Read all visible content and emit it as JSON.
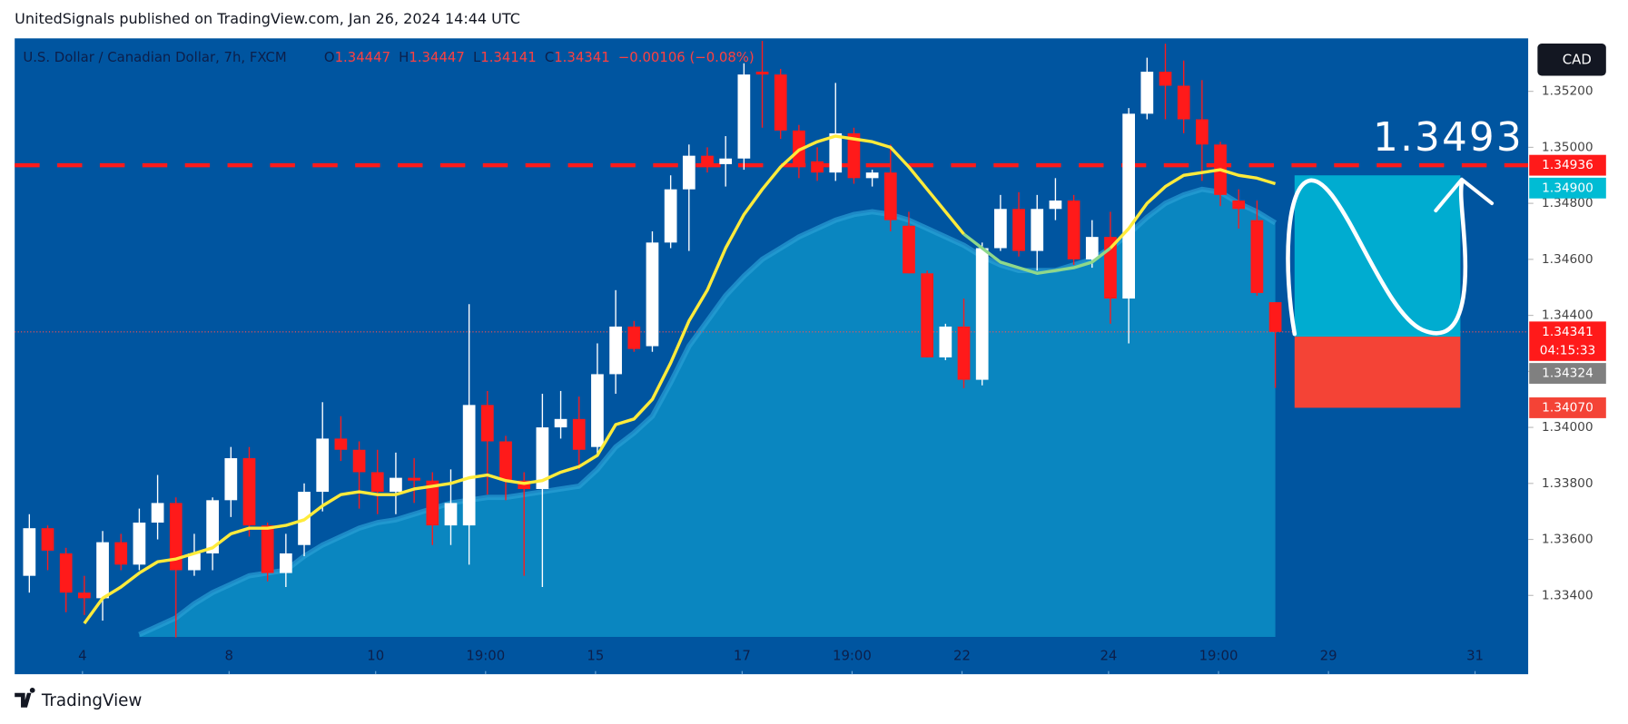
{
  "header": "UnitedSignals published on TradingView.com, Jan 26, 2024 14:44 UTC",
  "footer": "TradingView",
  "currency_button": "CAD",
  "chart_data": {
    "type": "candlestick",
    "symbol": "U.S. Dollar / Canadian Dollar, 7h, FXCM",
    "ohlc_legend": [
      {
        "key": "O",
        "value": 1.34447
      },
      {
        "key": "H",
        "value": 1.34447
      },
      {
        "key": "L",
        "value": 1.34141
      },
      {
        "key": "C",
        "value": 1.34341
      }
    ],
    "change": "−0.00106 (−0.08%)",
    "up_color": "#ffffff",
    "down_color": "#ff1a1a",
    "background": "#0055a0",
    "x": [
      0,
      1,
      2,
      3,
      4,
      5,
      6,
      7,
      8,
      9,
      10,
      11,
      12,
      13,
      14,
      15,
      16,
      17,
      18,
      19,
      20,
      21,
      22,
      23,
      24,
      25,
      26,
      27,
      28,
      29,
      30,
      31,
      32,
      33,
      34,
      35,
      36,
      37,
      38,
      39,
      40,
      41,
      42,
      43,
      44,
      45,
      46,
      47,
      48,
      49,
      50,
      51,
      52,
      53,
      54,
      55,
      56,
      57,
      58,
      59,
      60,
      61,
      62,
      63,
      64,
      65,
      66,
      67,
      68
    ],
    "open": [
      1.3347,
      1.3364,
      1.3355,
      1.3341,
      1.3339,
      1.3359,
      1.3351,
      1.3366,
      1.3373,
      1.3349,
      1.3355,
      1.3374,
      1.3389,
      1.3365,
      1.3348,
      1.3358,
      1.3377,
      1.3396,
      1.3392,
      1.3384,
      1.3377,
      1.3382,
      1.3381,
      1.3365,
      1.3365,
      1.3408,
      1.3395,
      1.3381,
      1.3378,
      1.34,
      1.3403,
      1.3393,
      1.3419,
      1.3436,
      1.3429,
      1.3466,
      1.3485,
      1.3497,
      1.3494,
      1.3496,
      1.3527,
      1.3526,
      1.3506,
      1.3495,
      1.3491,
      1.3505,
      1.3489,
      1.3491,
      1.3472,
      1.3455,
      1.3425,
      1.3436,
      1.3417,
      1.3464,
      1.3478,
      1.3463,
      1.3478,
      1.3481,
      1.346,
      1.3468,
      1.3446,
      1.3512,
      1.3527,
      1.3522,
      1.351,
      1.3501,
      1.3481,
      1.3474,
      1.34447
    ],
    "high": [
      1.3369,
      1.3365,
      1.3357,
      1.3347,
      1.3363,
      1.3362,
      1.3371,
      1.3383,
      1.3375,
      1.3362,
      1.3375,
      1.3393,
      1.3393,
      1.3366,
      1.3362,
      1.338,
      1.3409,
      1.3404,
      1.3395,
      1.3392,
      1.3391,
      1.3389,
      1.3384,
      1.3385,
      1.3444,
      1.3413,
      1.3397,
      1.3384,
      1.3412,
      1.3413,
      1.3411,
      1.343,
      1.3449,
      1.3438,
      1.347,
      1.349,
      1.3501,
      1.35,
      1.3504,
      1.353,
      1.3538,
      1.3528,
      1.3508,
      1.35,
      1.3523,
      1.3507,
      1.3492,
      1.3501,
      1.3477,
      1.3456,
      1.3437,
      1.3446,
      1.3466,
      1.3483,
      1.3484,
      1.3483,
      1.3489,
      1.3483,
      1.3474,
      1.3477,
      1.3514,
      1.3532,
      1.3537,
      1.3531,
      1.3524,
      1.3502,
      1.3485,
      1.3481,
      1.34447
    ],
    "low": [
      1.3341,
      1.3349,
      1.3334,
      1.3333,
      1.3331,
      1.3349,
      1.3349,
      1.336,
      1.3325,
      1.3347,
      1.3349,
      1.3368,
      1.3361,
      1.3345,
      1.3343,
      1.3354,
      1.337,
      1.3388,
      1.3371,
      1.3369,
      1.3369,
      1.3373,
      1.3358,
      1.3358,
      1.3351,
      1.3376,
      1.3374,
      1.3347,
      1.3343,
      1.3396,
      1.3385,
      1.339,
      1.3412,
      1.3427,
      1.3427,
      1.3464,
      1.3463,
      1.3491,
      1.3486,
      1.3492,
      1.3507,
      1.3503,
      1.3489,
      1.3488,
      1.3488,
      1.3487,
      1.3486,
      1.347,
      1.3455,
      1.3425,
      1.3424,
      1.3414,
      1.3415,
      1.3463,
      1.3461,
      1.3456,
      1.3474,
      1.3458,
      1.3457,
      1.3437,
      1.343,
      1.351,
      1.351,
      1.3505,
      1.3488,
      1.3479,
      1.3471,
      1.3447,
      1.34141
    ],
    "close": [
      1.3364,
      1.3356,
      1.3341,
      1.3339,
      1.3359,
      1.3351,
      1.3366,
      1.3373,
      1.3349,
      1.3355,
      1.3374,
      1.3389,
      1.3365,
      1.3348,
      1.3355,
      1.3377,
      1.3396,
      1.3392,
      1.3384,
      1.3377,
      1.3382,
      1.3381,
      1.3365,
      1.3373,
      1.3408,
      1.3395,
      1.3381,
      1.3378,
      1.34,
      1.3403,
      1.3392,
      1.3419,
      1.3436,
      1.3428,
      1.3466,
      1.3485,
      1.3497,
      1.3494,
      1.3496,
      1.3526,
      1.3526,
      1.3506,
      1.3494,
      1.3491,
      1.3505,
      1.3489,
      1.3491,
      1.3474,
      1.3455,
      1.3425,
      1.3436,
      1.3417,
      1.3464,
      1.3478,
      1.3463,
      1.3478,
      1.3481,
      1.346,
      1.3468,
      1.3446,
      1.3512,
      1.3527,
      1.3522,
      1.351,
      1.3501,
      1.3483,
      1.3478,
      1.3448,
      1.34341
    ],
    "series": [
      {
        "color": "#ffeb3b",
        "values": [
          null,
          null,
          null,
          1.333,
          1.3339,
          1.3343,
          1.3348,
          1.3352,
          1.3353,
          1.3355,
          1.3357,
          1.3362,
          1.3364,
          1.3364,
          1.3365,
          1.3367,
          1.3372,
          1.3376,
          1.3377,
          1.3376,
          1.3376,
          1.3378,
          1.3379,
          1.338,
          1.3382,
          1.3383,
          1.3381,
          1.338,
          1.3381,
          1.3384,
          1.3386,
          1.339,
          1.3401,
          1.3403,
          1.341,
          1.3423,
          1.3438,
          1.3449,
          1.3464,
          1.3476,
          1.3485,
          1.3493,
          1.3499,
          1.3502,
          1.3504,
          1.3503,
          1.3502,
          1.35,
          1.3493,
          1.3485,
          1.3477,
          1.3469,
          null,
          null,
          null,
          null,
          null,
          null,
          null,
          1.3464,
          1.3471,
          1.348,
          1.3486,
          1.349,
          1.3491,
          1.3492,
          1.349,
          1.3489,
          1.3487
        ]
      },
      {
        "color": "#8fd88a",
        "values": [
          null,
          null,
          null,
          null,
          null,
          null,
          null,
          null,
          null,
          null,
          null,
          null,
          null,
          null,
          null,
          null,
          null,
          null,
          null,
          null,
          null,
          null,
          null,
          null,
          null,
          null,
          null,
          null,
          null,
          null,
          null,
          null,
          null,
          null,
          null,
          null,
          null,
          null,
          null,
          null,
          null,
          null,
          null,
          null,
          null,
          null,
          null,
          null,
          null,
          null,
          null,
          1.3469,
          1.3464,
          1.3459,
          1.3457,
          1.3455,
          1.3456,
          1.3457,
          1.3459,
          1.3464,
          null,
          null,
          null,
          null,
          null,
          null,
          null,
          null,
          null
        ]
      }
    ],
    "area": {
      "color": "#0a86c0",
      "line_color": "#2a9fd6",
      "values": [
        null,
        null,
        null,
        null,
        null,
        null,
        1.3326,
        1.3329,
        1.3332,
        1.3337,
        1.3341,
        1.3344,
        1.3347,
        1.3348,
        1.3349,
        1.3354,
        1.3358,
        1.3361,
        1.3364,
        1.3366,
        1.3367,
        1.3369,
        1.3371,
        1.3373,
        1.3374,
        1.3375,
        1.3375,
        1.3376,
        1.3377,
        1.3378,
        1.3379,
        1.3385,
        1.3393,
        1.3398,
        1.3404,
        1.3416,
        1.3429,
        1.3438,
        1.3447,
        1.3454,
        1.346,
        1.3464,
        1.3468,
        1.3471,
        1.3474,
        1.3476,
        1.3477,
        1.3476,
        1.3474,
        1.3471,
        1.3468,
        1.3465,
        1.3461,
        1.3458,
        1.3456,
        1.3456,
        1.3456,
        1.3458,
        1.346,
        1.3464,
        1.3469,
        1.3475,
        1.348,
        1.3483,
        1.3485,
        1.3484,
        1.348,
        1.3477,
        1.3473
      ]
    },
    "xlim": [
      -0.8,
      81.8
    ],
    "ylim": [
      1.33252,
      1.35389
    ],
    "xticks": [
      {
        "value": 2.9,
        "label": "4"
      },
      {
        "value": 10.9,
        "label": "8"
      },
      {
        "value": 18.9,
        "label": "10"
      },
      {
        "value": 24.9,
        "label": "19:00"
      },
      {
        "value": 30.9,
        "label": "15"
      },
      {
        "value": 38.9,
        "label": "17"
      },
      {
        "value": 44.9,
        "label": "19:00"
      },
      {
        "value": 50.9,
        "label": "22"
      },
      {
        "value": 58.9,
        "label": "24"
      },
      {
        "value": 64.9,
        "label": "19:00"
      },
      {
        "value": 70.9,
        "label": "29"
      },
      {
        "value": 78.9,
        "label": "31"
      }
    ],
    "yticks": [
      {
        "value": 1.334,
        "label": "1.33400"
      },
      {
        "value": 1.336,
        "label": "1.33600"
      },
      {
        "value": 1.338,
        "label": "1.33800"
      },
      {
        "value": 1.34,
        "label": "1.34000"
      },
      {
        "value": 1.342,
        "label": "1.34200"
      },
      {
        "value": 1.344,
        "label": "1.34400"
      },
      {
        "value": 1.346,
        "label": "1.34600"
      },
      {
        "value": 1.348,
        "label": "1.34800"
      },
      {
        "value": 1.35,
        "label": "1.35000"
      },
      {
        "value": 1.352,
        "label": "1.35200"
      }
    ],
    "resistance": {
      "value": 1.34936,
      "color": "#ff1a1a"
    },
    "annotation": "1.3493",
    "position": {
      "entry": 1.34324,
      "target": {
        "value": 1.349,
        "label": "1.34900"
      },
      "stop": {
        "value": 1.3407,
        "label": "1.34070"
      },
      "x_range": [
        69.05,
        78.1
      ],
      "target_color": "#00acd0",
      "stop_color": "#f44336"
    },
    "price_labels": [
      {
        "value": 1.34936,
        "color": "#ff1a1a"
      },
      {
        "value": 1.349,
        "label": "1.34900",
        "color": "#00bcd4"
      },
      {
        "value": 1.34341,
        "color": "#ff1a1a",
        "countdown": "04:15:33"
      },
      {
        "value": 1.34324,
        "color": "#808080"
      },
      {
        "value": 1.3407,
        "label": "1.34070",
        "color": "#f44336"
      }
    ]
  }
}
